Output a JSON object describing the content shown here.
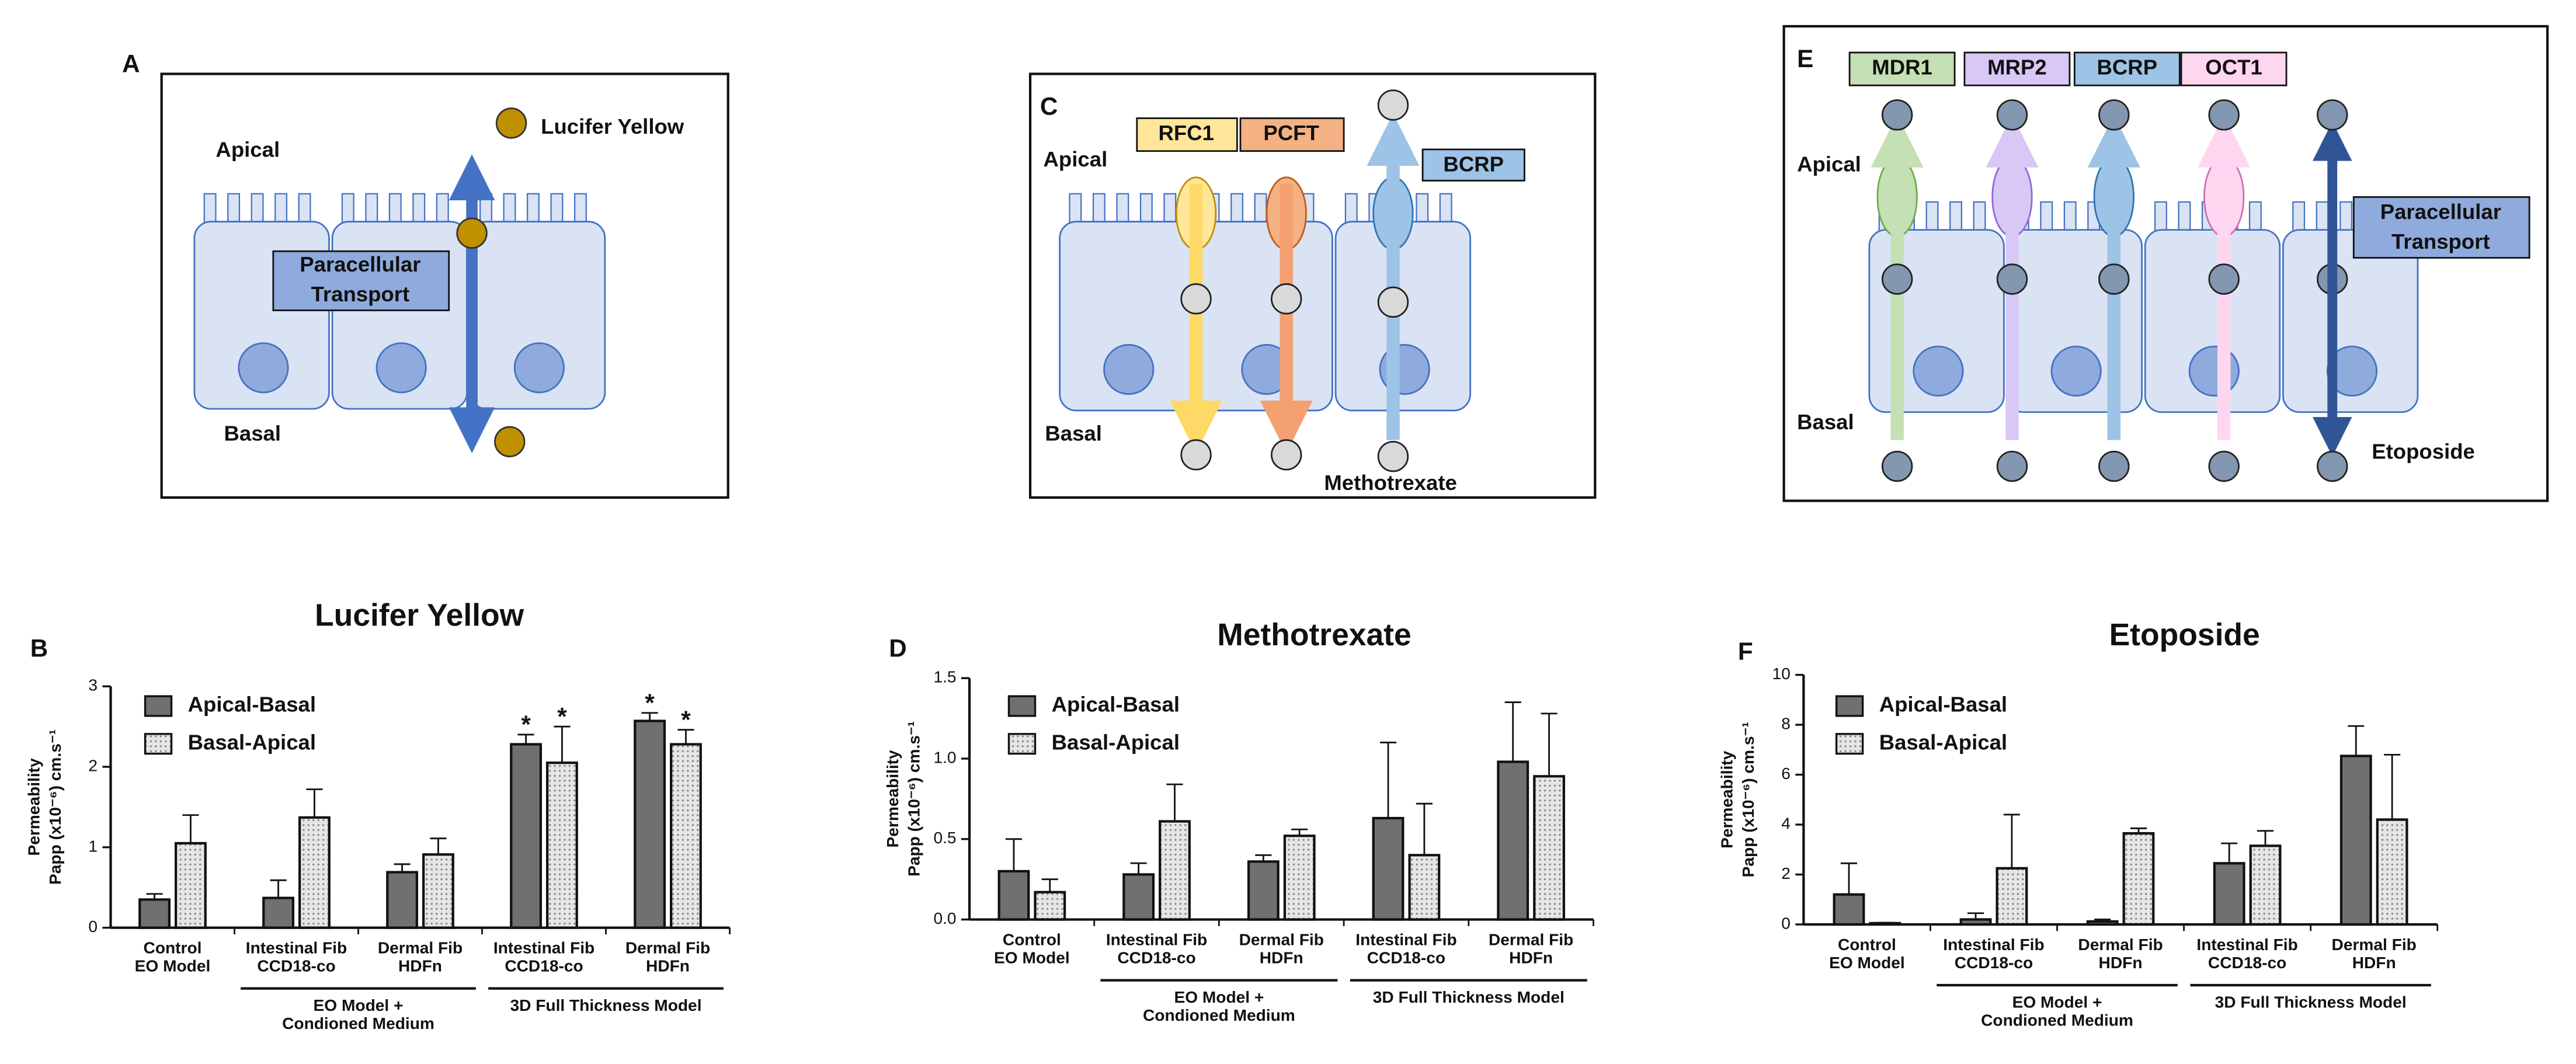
{
  "diagram_a": {
    "letter": "A",
    "apical": "Apical",
    "basal": "Basal",
    "molecule": "Lucifer Yellow",
    "route": [
      "Paracellular",
      "Transport"
    ]
  },
  "diagram_c": {
    "letter": "C",
    "apical": "Apical",
    "basal": "Basal",
    "transporters": [
      "RFC1",
      "PCFT",
      "BCRP"
    ],
    "molecule": "Methotrexate"
  },
  "diagram_e": {
    "letter": "E",
    "apical": "Apical",
    "basal": "Basal",
    "transporters": [
      "MDR1",
      "MRP2",
      "BCRP",
      "OCT1"
    ],
    "route": [
      "Paracellular",
      "Transport"
    ],
    "molecule": "Etoposide"
  },
  "chart_data": [
    {
      "type": "bar",
      "panel": "B",
      "title": "Lucifer Yellow",
      "y_label": [
        "Permeability",
        "Papp (x10⁻⁶) cm.s⁻¹"
      ],
      "categories": [
        [
          "Control",
          "EO Model"
        ],
        [
          "Intestinal Fib",
          "CCD18-co"
        ],
        [
          "Dermal Fib",
          "HDFn"
        ],
        [
          "Intestinal Fib",
          "CCD18-co"
        ],
        [
          "Dermal Fib",
          "HDFn"
        ]
      ],
      "groups": [
        {
          "label": [
            "EO  Model +",
            "Condioned Medium"
          ],
          "span": [
            1,
            2
          ]
        },
        {
          "label": [
            "3D Full Thickness Model"
          ],
          "span": [
            3,
            4
          ]
        }
      ],
      "series": [
        {
          "name": "Apical-Basal",
          "color": "#707070",
          "values": [
            0.35,
            0.37,
            0.69,
            2.28,
            2.57
          ],
          "errors": [
            0.07,
            0.22,
            0.1,
            0.12,
            0.1
          ],
          "significance": [
            null,
            null,
            null,
            "*",
            "*"
          ]
        },
        {
          "name": "Basal-Apical",
          "color": "#dcdcdc",
          "hatch": "dots",
          "values": [
            1.05,
            1.37,
            0.91,
            2.05,
            2.28
          ],
          "errors": [
            0.35,
            0.35,
            0.2,
            0.45,
            0.18
          ],
          "significance": [
            null,
            null,
            null,
            "*",
            "*"
          ]
        }
      ],
      "ylim": [
        0,
        3
      ],
      "yticks": [
        0,
        1,
        2,
        3
      ]
    },
    {
      "type": "bar",
      "panel": "D",
      "title": "Methotrexate",
      "y_label": [
        "Permeability",
        "Papp (x10⁻⁶) cm.s⁻¹"
      ],
      "categories": [
        [
          "Control",
          "EO Model"
        ],
        [
          "Intestinal Fib",
          "CCD18-co"
        ],
        [
          "Dermal Fib",
          "HDFn"
        ],
        [
          "Intestinal Fib",
          "CCD18-co"
        ],
        [
          "Dermal Fib",
          "HDFn"
        ]
      ],
      "groups": [
        {
          "label": [
            "EO  Model +",
            "Condioned Medium"
          ],
          "span": [
            1,
            2
          ]
        },
        {
          "label": [
            "3D Full Thickness Model"
          ],
          "span": [
            3,
            4
          ]
        }
      ],
      "series": [
        {
          "name": "Apical-Basal",
          "color": "#707070",
          "values": [
            0.3,
            0.28,
            0.36,
            0.63,
            0.98
          ],
          "errors": [
            0.2,
            0.07,
            0.04,
            0.47,
            0.37
          ]
        },
        {
          "name": "Basal-Apical",
          "color": "#dcdcdc",
          "hatch": "dots",
          "values": [
            0.17,
            0.61,
            0.52,
            0.4,
            0.89
          ],
          "errors": [
            0.08,
            0.23,
            0.04,
            0.32,
            0.39
          ]
        }
      ],
      "ylim": [
        0,
        1.5
      ],
      "yticks": [
        {
          "value": 0,
          "label": "0.0"
        },
        0.5,
        {
          "value": 1,
          "label": "1.0"
        },
        1.5
      ]
    },
    {
      "type": "bar",
      "panel": "F",
      "title": "Etoposide",
      "y_label": [
        "Permeability",
        "Papp (x10⁻⁶) cm.s⁻¹"
      ],
      "categories": [
        [
          "Control",
          "EO Model"
        ],
        [
          "Intestinal Fib",
          "CCD18-co"
        ],
        [
          "Dermal Fib",
          "HDFn"
        ],
        [
          "Intestinal Fib",
          "CCD18-co"
        ],
        [
          "Dermal Fib",
          "HDFn"
        ]
      ],
      "groups": [
        {
          "label": [
            "EO  Model +",
            "Condioned Medium"
          ],
          "span": [
            1,
            2
          ]
        },
        {
          "label": [
            "3D Full Thickness Model"
          ],
          "span": [
            3,
            4
          ]
        }
      ],
      "series": [
        {
          "name": "Apical-Basal",
          "color": "#707070",
          "values": [
            1.2,
            0.2,
            0.12,
            2.45,
            6.75
          ],
          "errors": [
            1.25,
            0.25,
            0.08,
            0.8,
            1.2
          ]
        },
        {
          "name": "Basal-Apical",
          "color": "#dcdcdc",
          "hatch": "dots",
          "values": [
            0.05,
            2.25,
            3.65,
            3.15,
            4.2
          ],
          "errors": [
            0.02,
            2.15,
            0.2,
            0.6,
            2.6
          ]
        }
      ],
      "ylim": [
        0,
        10
      ],
      "yticks": [
        0,
        2,
        4,
        6,
        8,
        10
      ]
    }
  ]
}
